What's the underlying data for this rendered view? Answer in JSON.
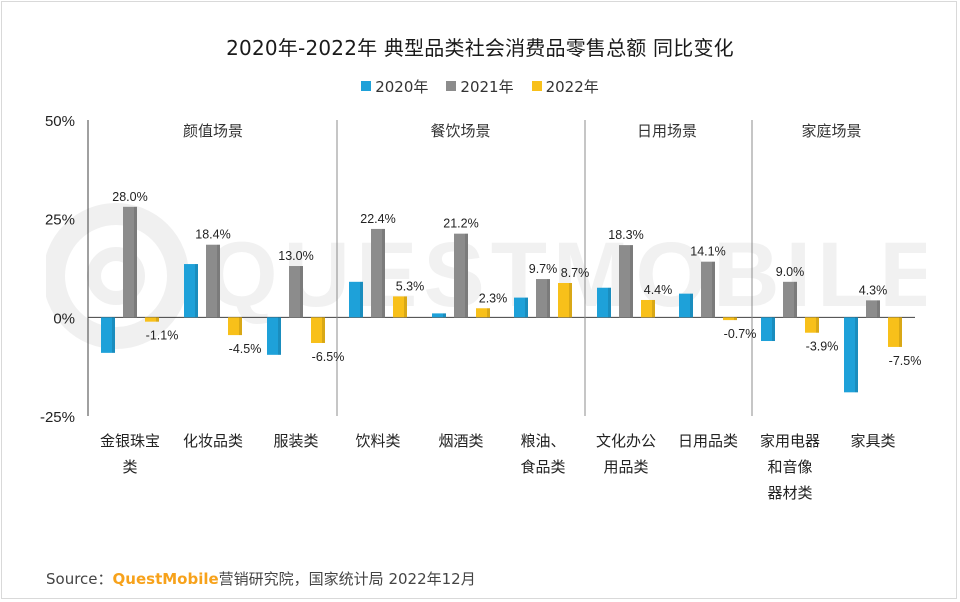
{
  "title": "2020年-2022年 典型品类社会消费品零售总额 同比变化",
  "watermark": "QUESTMOBILE",
  "source": {
    "prefix": "Source：",
    "brand": "QuestMobile",
    "rest": "营销研究院，国家统计局 2022年12月"
  },
  "colors": {
    "2020": "#1ea1d9",
    "2021": "#8c8c8c",
    "2022": "#f8c01a",
    "axis": "#404040",
    "divider": "#8c8c8c"
  },
  "chart_data": {
    "type": "bar",
    "title": "2020年-2022年 典型品类社会消费品零售总额 同比变化",
    "ylim": [
      -25,
      50
    ],
    "yticks": [
      {
        "value": 50,
        "label": "50%"
      },
      {
        "value": 25,
        "label": "25%"
      },
      {
        "value": 0,
        "label": "0%"
      },
      {
        "value": -25,
        "label": "-25%"
      }
    ],
    "legend_position": "top-center",
    "groups": [
      {
        "name": "颜值场景",
        "categories": [
          0,
          1,
          2
        ]
      },
      {
        "name": "餐饮场景",
        "categories": [
          3,
          4,
          5
        ]
      },
      {
        "name": "日用场景",
        "categories": [
          6,
          7
        ]
      },
      {
        "name": "家庭场景",
        "categories": [
          8,
          9
        ]
      }
    ],
    "categories": [
      [
        "金银珠宝",
        "类"
      ],
      [
        "化妆品类"
      ],
      [
        "服装类"
      ],
      [
        "饮料类"
      ],
      [
        "烟酒类"
      ],
      [
        "粮油、",
        "食品类"
      ],
      [
        "文化办公",
        "用品类"
      ],
      [
        "日用品类"
      ],
      [
        "家用电器",
        "和音像",
        "器材类"
      ],
      [
        "家具类"
      ]
    ],
    "series": [
      {
        "name": "2020年",
        "key": "2020",
        "values": [
          -9,
          13.5,
          -9.5,
          9,
          1,
          5,
          7.5,
          6,
          -6,
          -19
        ],
        "labels": [
          "",
          "",
          "",
          "",
          "",
          "",
          "",
          "",
          "",
          ""
        ]
      },
      {
        "name": "2021年",
        "key": "2021",
        "values": [
          28.0,
          18.4,
          13.0,
          22.4,
          21.2,
          9.7,
          18.3,
          14.1,
          9.0,
          4.3
        ],
        "labels": [
          "28.0%",
          "18.4%",
          "13.0%",
          "22.4%",
          "21.2%",
          "9.7%",
          "18.3%",
          "14.1%",
          "9.0%",
          "4.3%"
        ]
      },
      {
        "name": "2022年",
        "key": "2022",
        "values": [
          -1.1,
          -4.5,
          -6.5,
          5.3,
          2.3,
          8.7,
          4.4,
          -0.7,
          -3.9,
          -7.5
        ],
        "labels": [
          "-1.1%",
          "-4.5%",
          "-6.5%",
          "5.3%",
          "2.3%",
          "8.7%",
          "4.4%",
          "-0.7%",
          "-3.9%",
          "-7.5%"
        ]
      }
    ]
  }
}
